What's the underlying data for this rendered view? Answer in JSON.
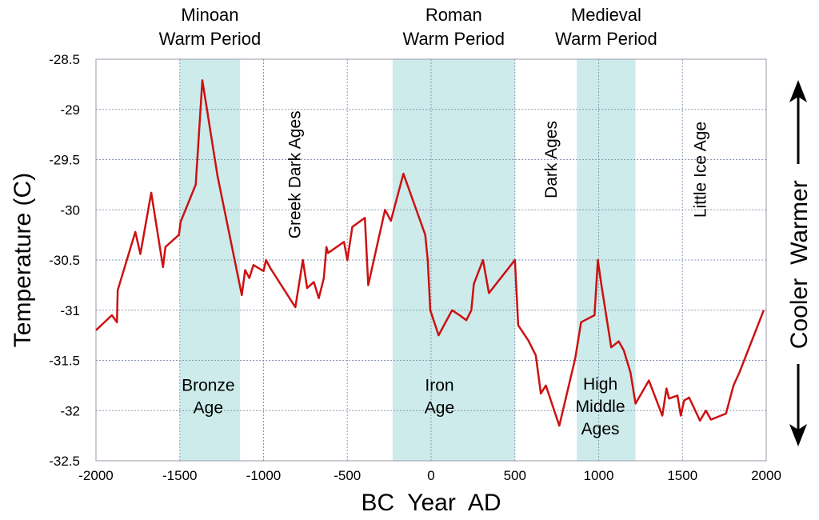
{
  "chart_data": {
    "type": "line",
    "title": "",
    "xlabel": "BC  Year  AD",
    "ylabel": "Temperature (C)",
    "xlim": [
      -2000,
      2000
    ],
    "ylim": [
      -32.5,
      -28.5
    ],
    "grid": true,
    "x_ticks": [
      -2000,
      -1500,
      -1000,
      -500,
      0,
      500,
      1000,
      1500,
      2000
    ],
    "y_ticks": [
      -28.5,
      -29,
      -29.5,
      -30,
      -30.5,
      -31,
      -31.5,
      -32,
      -32.5
    ],
    "x_tick_labels": [
      "-2000",
      "-1500",
      "-1000",
      "-500",
      "0",
      "500",
      "1000",
      "1500",
      "2000"
    ],
    "y_tick_labels": [
      "-28.5",
      "-29",
      "-29.5",
      "-30",
      "-30.5",
      "-31",
      "-31.5",
      "-32",
      "-32.5"
    ],
    "series": [
      {
        "name": "Temperature",
        "color": "#cc1111",
        "x": [
          -2000,
          -1905,
          -1875,
          -1870,
          -1765,
          -1735,
          -1670,
          -1600,
          -1585,
          -1505,
          -1495,
          -1405,
          -1365,
          -1275,
          -1130,
          -1110,
          -1085,
          -1060,
          -1000,
          -985,
          -960,
          -810,
          -765,
          -740,
          -700,
          -670,
          -640,
          -625,
          -615,
          -520,
          -500,
          -470,
          -395,
          -375,
          -275,
          -240,
          -165,
          -35,
          -20,
          -5,
          45,
          125,
          170,
          210,
          240,
          255,
          310,
          345,
          500,
          520,
          580,
          625,
          655,
          685,
          765,
          860,
          895,
          975,
          995,
          1015,
          1075,
          1120,
          1150,
          1190,
          1220,
          1300,
          1380,
          1405,
          1420,
          1470,
          1490,
          1510,
          1540,
          1605,
          1640,
          1670,
          1760,
          1805,
          1840,
          1985
        ],
        "values": [
          -31.2,
          -31.05,
          -31.12,
          -30.8,
          -30.22,
          -30.44,
          -29.83,
          -30.57,
          -30.37,
          -30.25,
          -30.12,
          -29.75,
          -28.71,
          -29.66,
          -30.85,
          -30.6,
          -30.68,
          -30.55,
          -30.61,
          -30.5,
          -30.58,
          -30.97,
          -30.5,
          -30.78,
          -30.72,
          -30.88,
          -30.68,
          -30.37,
          -30.43,
          -30.32,
          -30.5,
          -30.17,
          -30.08,
          -30.75,
          -30.0,
          -30.11,
          -29.64,
          -30.25,
          -30.5,
          -31.0,
          -31.25,
          -31.0,
          -31.05,
          -31.1,
          -31.0,
          -30.74,
          -30.5,
          -30.83,
          -30.5,
          -31.15,
          -31.3,
          -31.45,
          -31.83,
          -31.75,
          -32.15,
          -31.48,
          -31.12,
          -31.05,
          -30.5,
          -30.73,
          -31.37,
          -31.31,
          -31.4,
          -31.62,
          -31.93,
          -31.7,
          -32.05,
          -31.78,
          -31.88,
          -31.85,
          -32.05,
          -31.9,
          -31.87,
          -32.1,
          -32.0,
          -32.09,
          -32.03,
          -31.75,
          -31.62,
          -31.0
        ]
      }
    ],
    "shaded_regions": [
      {
        "name": "Minoan Warm Period",
        "x_start": -1500,
        "x_end": -1140,
        "color": "#cdebeb"
      },
      {
        "name": "Roman Warm Period",
        "x_start": -230,
        "x_end": 500,
        "color": "#cdebeb"
      },
      {
        "name": "Medieval Warm Period",
        "x_start": 870,
        "x_end": 1220,
        "color": "#cdebeb"
      }
    ],
    "period_labels": [
      {
        "lines": [
          "Minoan",
          "Warm Period"
        ],
        "x": -1320
      },
      {
        "lines": [
          "Roman",
          "Warm Period"
        ],
        "x": 135
      },
      {
        "lines": [
          "Medieval",
          "Warm Period"
        ],
        "x": 1045
      }
    ],
    "era_labels": [
      {
        "lines": [
          "Bronze",
          "Age"
        ],
        "x": -1330,
        "y": -31.85,
        "rotated": false
      },
      {
        "lines": [
          "Iron",
          "Age"
        ],
        "x": 50,
        "y": -31.85,
        "rotated": false
      },
      {
        "lines": [
          "High",
          "Middle",
          "Ages"
        ],
        "x": 1010,
        "y": -31.95,
        "rotated": false
      },
      {
        "lines": [
          "Greek Dark Ages"
        ],
        "x": -780,
        "y": -29.65,
        "rotated": true
      },
      {
        "lines": [
          "Dark Ages"
        ],
        "x": 750,
        "y": -29.5,
        "rotated": true
      },
      {
        "lines": [
          "Little Ice Age"
        ],
        "x": 1640,
        "y": -29.6,
        "rotated": true
      }
    ],
    "side_annotation": {
      "warmer": "Warmer",
      "cooler": "Cooler"
    }
  }
}
